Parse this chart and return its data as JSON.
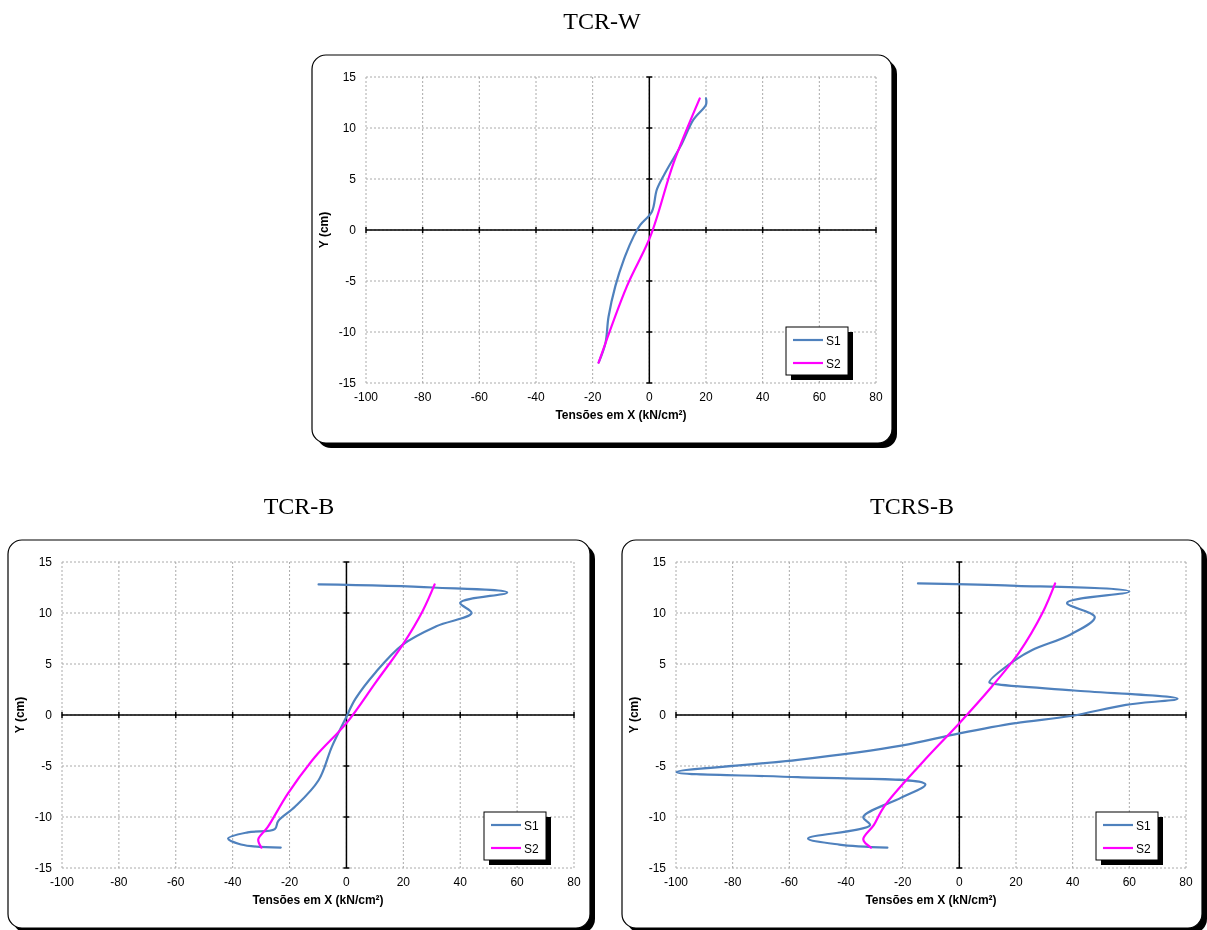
{
  "chart_data": [
    {
      "type": "line",
      "title": "TCR-W",
      "xlabel": "Tensões em X (kN/cm²)",
      "ylabel": "Y (cm)",
      "xlim": [
        -100,
        80
      ],
      "ylim": [
        -15,
        15
      ],
      "xticks": [
        -100,
        -80,
        -60,
        -40,
        -20,
        0,
        20,
        40,
        60,
        80
      ],
      "yticks": [
        -15,
        -10,
        -5,
        0,
        5,
        10,
        15
      ],
      "grid": true,
      "legend": "bottom right",
      "marker": "none",
      "line_style": "solid",
      "series": [
        {
          "name": "S1",
          "color": "#4f81bd",
          "x": [
            20,
            20,
            15.5,
            11,
            6.2,
            2.7,
            0.9,
            -3.2,
            -5.5,
            -9,
            -12,
            -14.4,
            -15.5,
            -17.9
          ],
          "values": [
            12.9,
            12.3,
            10.8,
            8.2,
            5.9,
            4,
            1.8,
            0.5,
            -0.6,
            -2.9,
            -5.5,
            -8.5,
            -11.1,
            -13
          ]
        },
        {
          "name": "S2",
          "color": "#ff00ff",
          "x": [
            17.8,
            8.6,
            0.4,
            -7.9,
            -17.9
          ],
          "values": [
            12.9,
            6.6,
            -0.6,
            -5.5,
            -13
          ]
        }
      ]
    },
    {
      "type": "line",
      "title": "TCR-B",
      "xlabel": "Tensões em X (kN/cm²)",
      "ylabel": "Y (cm)",
      "xlim": [
        -100,
        80
      ],
      "ylim": [
        -15,
        15
      ],
      "xticks": [
        -100,
        -80,
        -60,
        -40,
        -20,
        0,
        20,
        40,
        60,
        80
      ],
      "yticks": [
        -15,
        -10,
        -5,
        0,
        5,
        10,
        15
      ],
      "grid": true,
      "legend": "bottom right",
      "marker": "none",
      "line_style": "solid",
      "series": [
        {
          "name": "S1",
          "color": "#4f81bd",
          "x": [
            -9.8,
            30.5,
            56.5,
            40,
            44,
            31.6,
            19.8,
            10.3,
            3.2,
            -0.4,
            -5.1,
            -9.8,
            -18.1,
            -24,
            -25.2,
            -34.7,
            -41.6,
            -37.1,
            -23.1
          ],
          "values": [
            12.8,
            12.5,
            12,
            11,
            10,
            8.7,
            6.9,
            4.2,
            1.6,
            -0.4,
            -3.1,
            -6.4,
            -9,
            -10.4,
            -11.2,
            -11.5,
            -12.1,
            -12.7,
            -13
          ]
        },
        {
          "name": "S2",
          "color": "#ff00ff",
          "x": [
            31,
            26.8,
            19.8,
            10.3,
            0,
            -11,
            -20.6,
            -27.7,
            -31,
            -29.9
          ],
          "values": [
            12.8,
            10.2,
            6.9,
            3.2,
            -0.8,
            -4.1,
            -7.7,
            -11,
            -12.2,
            -13
          ]
        }
      ]
    },
    {
      "type": "line",
      "title": "TCRS-B",
      "xlabel": "Tensões em X (kN/cm²)",
      "ylabel": "Y (cm)",
      "xlim": [
        -100,
        80
      ],
      "ylim": [
        -15,
        15
      ],
      "xticks": [
        -100,
        -80,
        -60,
        -40,
        -20,
        0,
        20,
        40,
        60,
        80
      ],
      "yticks": [
        -15,
        -10,
        -5,
        0,
        5,
        10,
        15
      ],
      "grid": true,
      "legend": "bottom right",
      "marker": "none",
      "line_style": "solid",
      "series": [
        {
          "name": "S1",
          "color": "#4f81bd",
          "x": [
            -14.6,
            16.1,
            60,
            38,
            47.8,
            39.3,
            25.9,
            19.8,
            10.6,
            13.7,
            40.5,
            77,
            58.8,
            39.3,
            19.8,
            0,
            -20.5,
            -57,
            -99.8,
            -57,
            -12,
            -20.5,
            -33.9,
            -31.5,
            -53.4,
            -42.4,
            -25.4
          ],
          "values": [
            12.9,
            12.7,
            12.1,
            11,
            9.6,
            7.9,
            6.4,
            5.4,
            3.2,
            3,
            2.4,
            1.6,
            1,
            -0.1,
            -0.8,
            -1.8,
            -3,
            -4.4,
            -5.6,
            -6.1,
            -6.8,
            -8.1,
            -10,
            -10.8,
            -12.1,
            -12.7,
            -13
          ]
        },
        {
          "name": "S2",
          "color": "#ff00ff",
          "x": [
            33.8,
            29.5,
            21,
            11.2,
            0,
            -13.2,
            -26.6,
            -30.2,
            -33.9,
            -31.2
          ],
          "values": [
            12.9,
            10.1,
            6.1,
            2.7,
            -0.8,
            -4.7,
            -9,
            -10.8,
            -12.2,
            -13
          ]
        }
      ]
    }
  ]
}
